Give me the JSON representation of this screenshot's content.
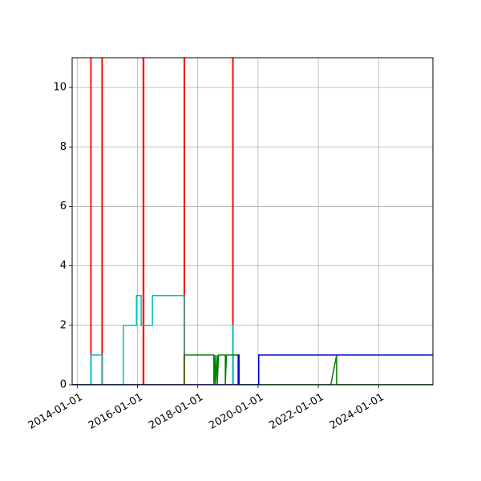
{
  "chart_data": {
    "type": "line",
    "title": "",
    "xlabel": "",
    "ylabel": "",
    "x_type": "date",
    "xlim": [
      "2013-11-01",
      "2025-10-20"
    ],
    "ylim": [
      0,
      11
    ],
    "grid": true,
    "xtick_labels": [
      "2014-01-01",
      "2016-01-01",
      "2018-01-01",
      "2020-01-01",
      "2022-01-01",
      "2024-01-01"
    ],
    "ytick_labels": [
      "0",
      "2",
      "4",
      "6",
      "8",
      "10"
    ],
    "series": [
      {
        "color": "#ff0000",
        "x": [
          "2013-11-01",
          "2014-06-15",
          "2014-06-15",
          "2014-06-18",
          "2014-06-18",
          "2014-10-28",
          "2014-10-28",
          "2014-11-01",
          "2014-11-01",
          "2016-03-10",
          "2016-03-10",
          "2016-03-18",
          "2016-03-18",
          "2017-07-20",
          "2017-07-20",
          "2017-07-24",
          "2017-07-24",
          "2019-03-01",
          "2019-03-01",
          "2019-03-05",
          "2019-03-05",
          "2025-10-20"
        ],
        "y": [
          0,
          0,
          11,
          11,
          0,
          0,
          11,
          11,
          0,
          0,
          11,
          11,
          0,
          0,
          11,
          11,
          0,
          0,
          11,
          11,
          0,
          0
        ]
      },
      {
        "color": "#00bfbf",
        "x": [
          "2013-11-01",
          "2014-06-15",
          "2014-06-15",
          "2014-10-28",
          "2014-10-28",
          "2015-07-15",
          "2015-07-15",
          "2015-12-20",
          "2015-12-20",
          "2016-02-15",
          "2016-02-15",
          "2016-07-01",
          "2016-07-01",
          "2017-07-20",
          "2017-07-20",
          "2019-03-01",
          "2019-03-01",
          "2019-03-05",
          "2019-03-05",
          "2019-05-01",
          "2019-05-01",
          "2025-10-20"
        ],
        "y": [
          0,
          0,
          1,
          1,
          0,
          0,
          2,
          2,
          3,
          3,
          2,
          2,
          3,
          3,
          0,
          0,
          2,
          2,
          1,
          1,
          0,
          0
        ]
      },
      {
        "color": "#008000",
        "x": [
          "2013-11-01",
          "2017-07-20",
          "2017-07-20",
          "2018-07-15",
          "2018-07-15",
          "2018-08-01",
          "2018-08-01",
          "2018-08-25",
          "2018-08-25",
          "2018-09-10",
          "2018-09-10",
          "2018-12-01",
          "2018-12-01",
          "2018-12-15",
          "2018-12-15",
          "2019-05-15",
          "2019-05-15",
          "2022-06-01",
          "2022-08-10",
          "2022-08-10",
          "2025-10-20"
        ],
        "y": [
          0,
          0,
          1,
          1,
          0,
          1,
          0,
          1,
          0,
          1,
          1,
          1,
          0,
          1,
          1,
          1,
          0,
          0,
          1,
          0,
          0
        ]
      },
      {
        "color": "#0000cd",
        "x": [
          "2013-11-01",
          "2019-05-10",
          "2019-05-10",
          "2019-05-15",
          "2019-05-15",
          "2020-01-10",
          "2020-01-10",
          "2025-10-20"
        ],
        "y": [
          0,
          0,
          1,
          1,
          0,
          0,
          1,
          1
        ]
      }
    ]
  }
}
